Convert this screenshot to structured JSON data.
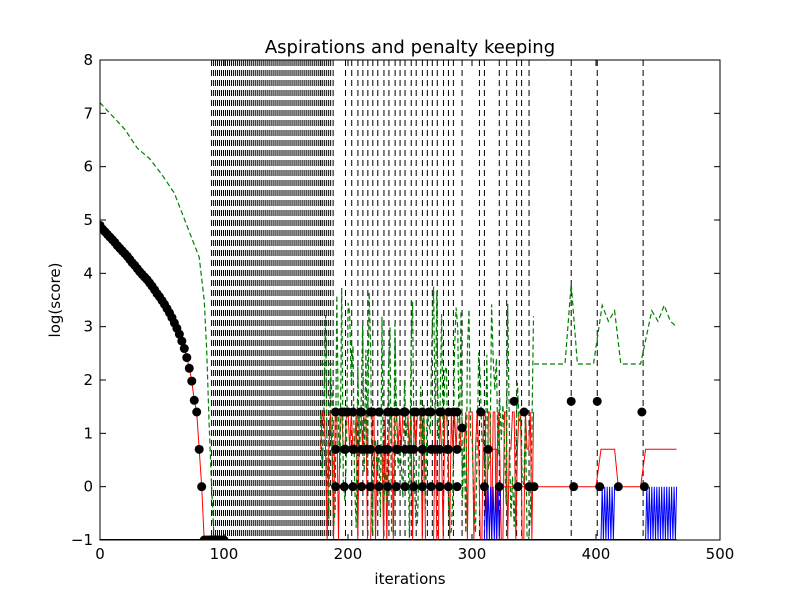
{
  "chart_data": {
    "type": "line",
    "title": "Aspirations and penalty keeping",
    "xlabel": "iterations",
    "ylabel": "log(score)",
    "xlim": [
      0,
      500
    ],
    "ylim": [
      -1,
      8
    ],
    "xticks": [
      "0",
      "100",
      "200",
      "300",
      "400",
      "500"
    ],
    "yticks": [
      "−1",
      "0",
      "1",
      "2",
      "3",
      "4",
      "5",
      "6",
      "7",
      "8"
    ],
    "grid": false,
    "legend": "none",
    "colors": {
      "current": "#ff0000",
      "best_markers": "#000000",
      "aspiration": "#008000",
      "penalty": "#0000ff",
      "vlines": "#000000"
    },
    "series": [
      {
        "style": "black-dots",
        "x": [
          0,
          2,
          4,
          6,
          8,
          10,
          12,
          14,
          16,
          18,
          20,
          22,
          24,
          26,
          28,
          30,
          32,
          34,
          36,
          38,
          40,
          42,
          44,
          46,
          48,
          50,
          52,
          54,
          56,
          58,
          60,
          62,
          64,
          66,
          68,
          70,
          72,
          74,
          76,
          78,
          80,
          82,
          84,
          86,
          88,
          89,
          90,
          91,
          92,
          93,
          94,
          96,
          98,
          100,
          190,
          195,
          198,
          200,
          205,
          210,
          215,
          220,
          225,
          230,
          235,
          240,
          245,
          250,
          255,
          260,
          265,
          270,
          275,
          280,
          285,
          292,
          307,
          310,
          313,
          322,
          334,
          337,
          342,
          346,
          350,
          380,
          382,
          401,
          403,
          418,
          437,
          439
        ],
        "y": [
          4.9,
          4.83,
          4.78,
          4.73,
          4.68,
          4.63,
          4.58,
          4.52,
          4.47,
          4.42,
          4.37,
          4.32,
          4.26,
          4.2,
          4.15,
          4.09,
          4.03,
          3.98,
          3.93,
          3.88,
          3.82,
          3.76,
          3.69,
          3.62,
          3.56,
          3.49,
          3.42,
          3.34,
          3.26,
          3.17,
          3.07,
          2.97,
          2.86,
          2.73,
          2.59,
          2.42,
          2.22,
          1.98,
          1.62,
          1.4,
          0.7,
          0.0,
          -1,
          -1,
          -1,
          -1,
          -1,
          -1,
          -1,
          -1,
          -1,
          -1,
          -1,
          -1,
          1.4,
          1.4,
          0.7,
          1.4,
          0.7,
          1.4,
          0.7,
          1.4,
          1.4,
          0.7,
          1.4,
          0.7,
          1.4,
          0.7,
          1.4,
          0.7,
          1.4,
          0.7,
          1.4,
          0.7,
          1.4,
          1.1,
          1.4,
          0.0,
          0.7,
          0.0,
          1.6,
          0.0,
          1.4,
          0.0,
          0.0,
          1.6,
          0.0,
          1.6,
          0.0,
          0.0,
          1.4,
          0.0
        ]
      },
      {
        "style": "green-dashed-aspiration",
        "x": [
          0,
          10,
          20,
          30,
          40,
          50,
          60,
          70,
          80,
          84,
          86,
          88,
          90,
          92
        ],
        "y": [
          7.2,
          6.95,
          6.7,
          6.35,
          6.15,
          5.85,
          5.5,
          4.9,
          4.3,
          3.5,
          2.6,
          1.2,
          0.0,
          -1
        ]
      },
      {
        "style": "red-current-tail",
        "x": [
          311,
          320,
          320,
          350,
          350,
          380,
          384,
          400,
          404,
          415,
          418,
          436,
          440,
          465
        ],
        "y": [
          0.7,
          0.7,
          0.0,
          0.0,
          0.0,
          0.0,
          0.0,
          0.0,
          0.7,
          0.7,
          0.0,
          0.0,
          0.7,
          0.7
        ]
      },
      {
        "style": "green-dashed-tail",
        "x": [
          350,
          355,
          375,
          380,
          385,
          398,
          405,
          410,
          415,
          420,
          436,
          445,
          450,
          455,
          460,
          465
        ],
        "y": [
          2.3,
          2.3,
          2.3,
          3.8,
          2.3,
          2.3,
          3.4,
          3.1,
          3.3,
          2.3,
          2.3,
          3.3,
          3.1,
          3.4,
          3.1,
          3.0
        ]
      }
    ],
    "vertical_lines_x": [
      178,
      188,
      198,
      203,
      208,
      212,
      216,
      220,
      224,
      229,
      233,
      238,
      242,
      246,
      251,
      255,
      260,
      264,
      268,
      272,
      277,
      281,
      285,
      292,
      306,
      310,
      322,
      328,
      336,
      340,
      346,
      380,
      401,
      438
    ]
  }
}
